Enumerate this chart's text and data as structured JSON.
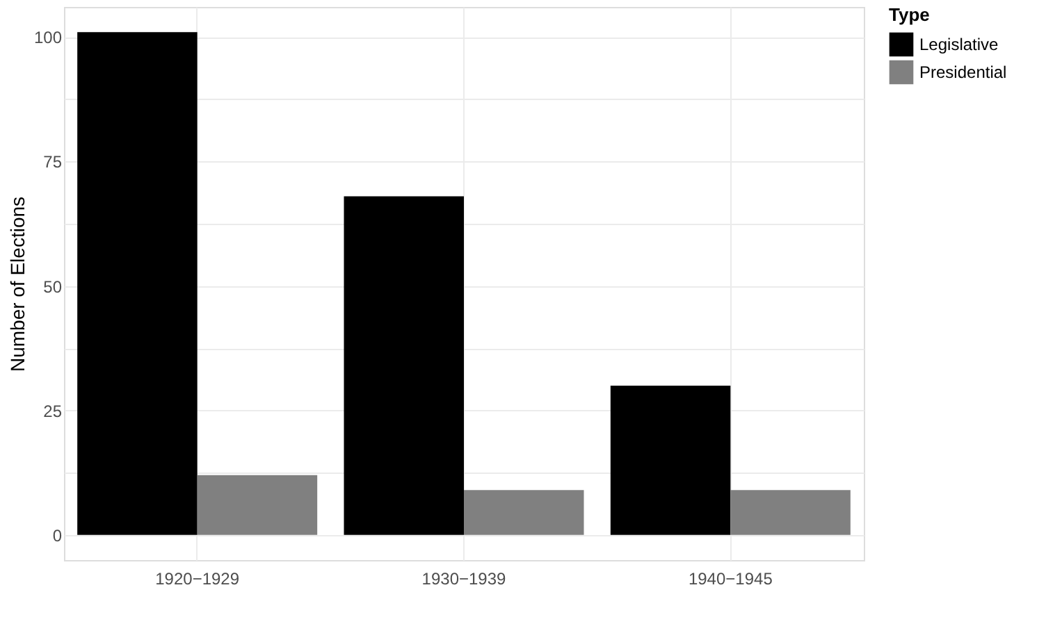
{
  "chart_data": {
    "type": "bar",
    "ylabel": "Number of Elections",
    "legend_title": "Type",
    "categories": [
      "1920−1929",
      "1930−1939",
      "1940−1945"
    ],
    "series": [
      {
        "name": "Legislative",
        "color": "#000000",
        "values": [
          101,
          68,
          30
        ]
      },
      {
        "name": "Presidential",
        "color": "#808080",
        "values": [
          12,
          9,
          9
        ]
      }
    ],
    "ylim": [
      -5.05,
      106.05
    ],
    "yticks": [
      0,
      {
        "value": 12.5,
        "label": null
      },
      25,
      {
        "value": 37.5,
        "label": null
      },
      50,
      {
        "value": 62.5,
        "label": null
      },
      75,
      {
        "value": 87.5,
        "label": null
      },
      100
    ],
    "grid": true,
    "legend": "right"
  }
}
